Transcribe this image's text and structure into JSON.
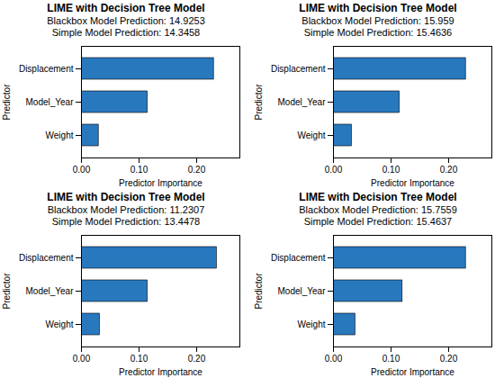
{
  "chart_data": [
    {
      "type": "bar",
      "orientation": "horizontal",
      "title": "LIME with Decision Tree Model",
      "subtitle": [
        "Blackbox Model Prediction: 14.9253",
        "Simple Model Prediction: 14.3458"
      ],
      "categories": [
        "Weight",
        "Model_Year",
        "Displacement"
      ],
      "values": [
        0.03,
        0.115,
        0.23
      ],
      "color": "#2878BE",
      "xlabel": "Predictor Importance",
      "ylabel": "Predictor",
      "xlim": [
        0,
        0.275
      ],
      "xticks": [
        0,
        0.1,
        0.2
      ],
      "grid": false
    },
    {
      "type": "bar",
      "orientation": "horizontal",
      "title": "LIME with Decision Tree Model",
      "subtitle": [
        "Blackbox Model Prediction: 15.959",
        "Simple Model Prediction: 15.4636"
      ],
      "categories": [
        "Weight",
        "Model_Year",
        "Displacement"
      ],
      "values": [
        0.032,
        0.115,
        0.23
      ],
      "color": "#2878BE",
      "xlabel": "Predictor Importance",
      "ylabel": "Predictor",
      "xlim": [
        0,
        0.275
      ],
      "xticks": [
        0,
        0.1,
        0.2
      ],
      "grid": false
    },
    {
      "type": "bar",
      "orientation": "horizontal",
      "title": "LIME with Decision Tree Model",
      "subtitle": [
        "Blackbox Model Prediction: 11.2307",
        "Simple Model Prediction: 13.4478"
      ],
      "categories": [
        "Weight",
        "Model_Year",
        "Displacement"
      ],
      "values": [
        0.032,
        0.115,
        0.235
      ],
      "color": "#2878BE",
      "xlabel": "Predictor Importance",
      "ylabel": "Predictor",
      "xlim": [
        0,
        0.275
      ],
      "xticks": [
        0,
        0.1,
        0.2
      ],
      "grid": false
    },
    {
      "type": "bar",
      "orientation": "horizontal",
      "title": "LIME with Decision Tree Model",
      "subtitle": [
        "Blackbox Model Prediction: 15.7559",
        "Simple Model Prediction: 15.4637"
      ],
      "categories": [
        "Weight",
        "Model_Year",
        "Displacement"
      ],
      "values": [
        0.038,
        0.12,
        0.23
      ],
      "color": "#2878BE",
      "xlabel": "Predictor Importance",
      "ylabel": "Predictor",
      "xlim": [
        0,
        0.275
      ],
      "xticks": [
        0,
        0.1,
        0.2
      ],
      "grid": false
    }
  ]
}
